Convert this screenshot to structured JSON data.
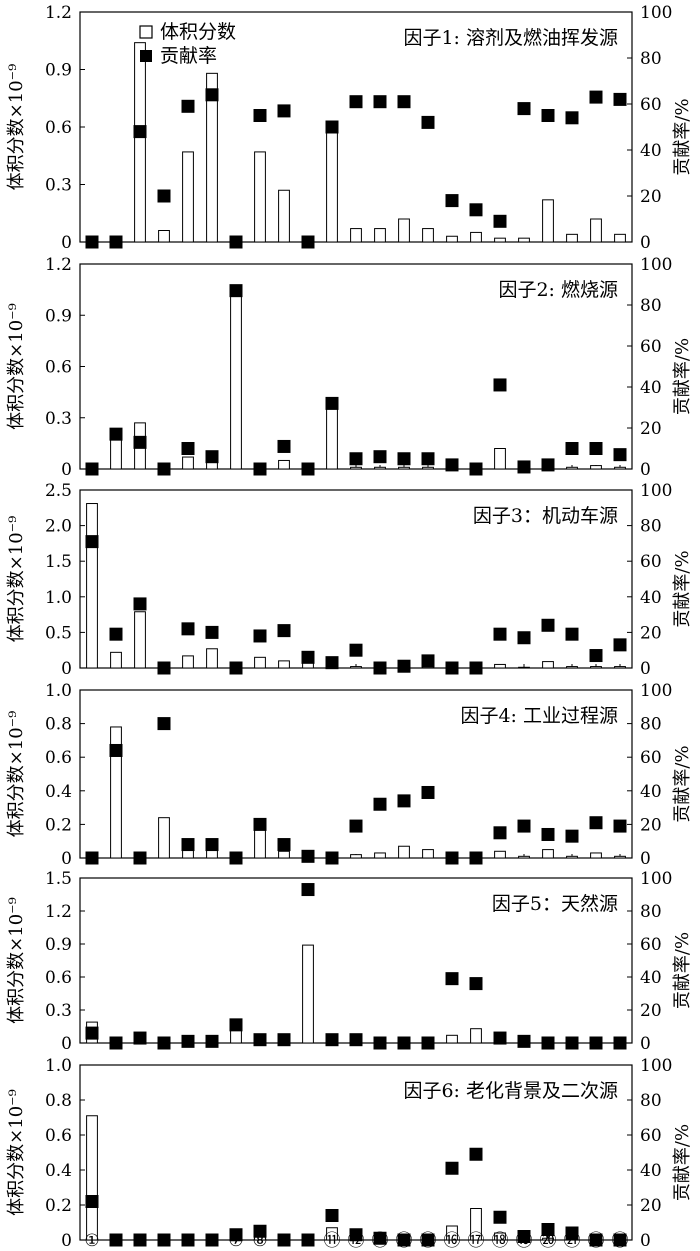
{
  "chart_data": {
    "type": "bar+scatter",
    "categories": [
      "①",
      "②",
      "③",
      "④",
      "⑤",
      "⑥",
      "⑦",
      "⑧",
      "⑨",
      "⑩",
      "⑪",
      "⑫",
      "⑬",
      "⑭",
      "⑮",
      "⑯",
      "⑰",
      "⑱",
      "⑲",
      "⑳",
      "㉑",
      "㉒",
      "㉓"
    ],
    "ylabel": "体积分数×10⁻⁹",
    "y2label": "贡献率/%",
    "legend": {
      "bar": "体积分数",
      "marker": "贡献率"
    },
    "panels": [
      {
        "title": "因子1: 溶剂及燃油挥发源",
        "ylim": [
          0,
          1.2
        ],
        "yticks": [
          "0",
          "0.3",
          "0.6",
          "0.9",
          "1.2"
        ],
        "y2lim": [
          0,
          100
        ],
        "y2ticks": [
          "0",
          "20",
          "40",
          "60",
          "80",
          "100"
        ],
        "bars": [
          0,
          0,
          1.04,
          0.06,
          0.47,
          0.88,
          0,
          0.47,
          0.27,
          0,
          0.62,
          0.07,
          0.07,
          0.12,
          0.07,
          0.03,
          0.05,
          0.02,
          0.02,
          0.22,
          0.04,
          0.12,
          0.04
        ],
        "contribution": [
          0,
          0,
          48,
          20,
          59,
          64,
          0,
          55,
          57,
          0,
          50,
          61,
          61,
          61,
          52,
          18,
          14,
          9,
          58,
          55,
          54,
          63,
          62
        ]
      },
      {
        "title": "因子2: 燃烧源",
        "ylim": [
          0,
          1.2
        ],
        "yticks": [
          "0",
          "0.3",
          "0.6",
          "0.9",
          "1.2"
        ],
        "y2lim": [
          0,
          100
        ],
        "y2ticks": [
          "0",
          "20",
          "40",
          "60",
          "80",
          "100"
        ],
        "bars": [
          0,
          0.2,
          0.27,
          0,
          0.07,
          0.06,
          1.05,
          0,
          0.05,
          0,
          0.38,
          0.01,
          0.01,
          0.01,
          0.01,
          0.01,
          0,
          0.12,
          0,
          0.01,
          0.01,
          0.02,
          0.01
        ],
        "contribution": [
          0,
          17,
          13,
          0,
          10,
          6,
          87,
          0,
          11,
          0,
          32,
          5,
          6,
          5,
          5,
          2,
          0,
          41,
          1,
          2,
          10,
          10,
          7
        ]
      },
      {
        "title": "因子3：机动车源",
        "ylim": [
          0,
          2.5
        ],
        "yticks": [
          "0",
          "0.5",
          "1.0",
          "1.5",
          "2.0",
          "2.5"
        ],
        "y2lim": [
          0,
          100
        ],
        "y2ticks": [
          "0",
          "20",
          "40",
          "60",
          "80",
          "100"
        ],
        "bars": [
          2.31,
          0.22,
          0.79,
          0,
          0.17,
          0.27,
          0,
          0.15,
          0.1,
          0.08,
          0.02,
          0.02,
          0.01,
          0.01,
          0.02,
          0.01,
          0.01,
          0.05,
          0.01,
          0.09,
          0.02,
          0.02,
          0.02
        ],
        "contribution": [
          71,
          19,
          36,
          0,
          22,
          20,
          0,
          18,
          21,
          6,
          3,
          10,
          0,
          1,
          4,
          0,
          0,
          19,
          17,
          24,
          19,
          7,
          13
        ]
      },
      {
        "title": "因子4: 工业过程源",
        "ylim": [
          0,
          1.0
        ],
        "yticks": [
          "0",
          "0.2",
          "0.4",
          "0.6",
          "0.8",
          "1.0"
        ],
        "y2lim": [
          0,
          100
        ],
        "y2ticks": [
          "0",
          "20",
          "40",
          "60",
          "80",
          "100"
        ],
        "bars": [
          0,
          0.78,
          0,
          0.24,
          0.07,
          0.06,
          0,
          0.18,
          0.04,
          0.02,
          0.02,
          0.02,
          0.03,
          0.07,
          0.05,
          0.01,
          0,
          0.04,
          0.01,
          0.05,
          0.01,
          0.03,
          0.01
        ],
        "contribution": [
          0,
          64,
          0,
          80,
          8,
          8,
          0,
          20,
          8,
          1,
          0,
          19,
          32,
          34,
          39,
          0,
          0,
          15,
          19,
          14,
          13,
          21,
          19
        ]
      },
      {
        "title": "因子5：天然源",
        "ylim": [
          0,
          1.5
        ],
        "yticks": [
          "0",
          "0.3",
          "0.6",
          "0.9",
          "1.2",
          "1.5"
        ],
        "y2lim": [
          0,
          100
        ],
        "y2ticks": [
          "0",
          "20",
          "40",
          "60",
          "80",
          "100"
        ],
        "bars": [
          0.19,
          0,
          0.03,
          0,
          0,
          0,
          0.13,
          0.03,
          0.03,
          0.89,
          0.03,
          0.03,
          0,
          0,
          0,
          0.07,
          0.13,
          0.03,
          0.01,
          0.01,
          0,
          0,
          0
        ],
        "contribution": [
          6,
          0,
          3,
          0,
          1,
          1,
          11,
          2,
          2,
          93,
          2,
          2,
          0,
          0,
          0,
          39,
          36,
          3,
          1,
          0,
          0,
          0,
          0
        ]
      },
      {
        "title": "因子6: 老化背景及二次源",
        "ylim": [
          0,
          1.0
        ],
        "yticks": [
          "0",
          "0.2",
          "0.4",
          "0.6",
          "0.8",
          "1.0"
        ],
        "y2lim": [
          0,
          100
        ],
        "y2ticks": [
          "0",
          "20",
          "40",
          "60",
          "80",
          "100"
        ],
        "bars": [
          0.71,
          0,
          0,
          0,
          0,
          0,
          0.02,
          0.02,
          0,
          0,
          0.07,
          0.01,
          0,
          0,
          0,
          0.08,
          0.18,
          0.04,
          0.01,
          0.01,
          0.01,
          0,
          0
        ],
        "contribution": [
          22,
          0,
          0,
          0,
          0,
          0,
          3,
          5,
          0,
          0,
          14,
          3,
          1,
          0,
          0,
          41,
          49,
          13,
          2,
          6,
          4,
          0,
          0
        ]
      }
    ]
  }
}
